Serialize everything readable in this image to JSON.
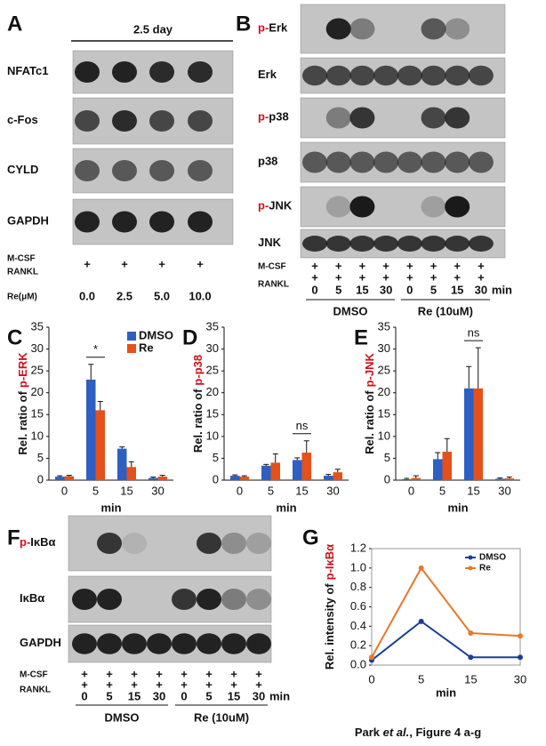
{
  "panels": {
    "A": {
      "label": "A",
      "header": "2.5 day",
      "rows": [
        {
          "name": "NFATc1"
        },
        {
          "name": "c-Fos"
        },
        {
          "name": "CYLD"
        },
        {
          "name": "GAPDH"
        }
      ],
      "mcsf": "M-CSF",
      "rankl": "RANKL",
      "marks": [
        "+",
        "+",
        "+",
        "+"
      ],
      "dose_label": "Re(μM)",
      "doses": [
        "0.0",
        "2.5",
        "5.0",
        "10.0"
      ]
    },
    "B": {
      "label": "B",
      "rows": [
        {
          "prefix": "p-",
          "name": "Erk"
        },
        {
          "name": "Erk"
        },
        {
          "prefix": "p-",
          "name": "p38"
        },
        {
          "name": "p38"
        },
        {
          "prefix": "p-",
          "name": "JNK"
        },
        {
          "name": "JNK"
        }
      ],
      "mcsf": "M-CSF",
      "rankl": "RANKL",
      "mcsf_marks": [
        "+",
        "+",
        "+",
        "+",
        "+",
        "+",
        "+",
        "+"
      ],
      "rankl_marks": [
        "+",
        "+",
        "+",
        "+",
        "+",
        "+",
        "+",
        "+"
      ],
      "times": [
        "0",
        "5",
        "15",
        "30",
        "0",
        "5",
        "15",
        "30"
      ],
      "time_unit": "min",
      "groups": [
        "DMSO",
        "Re (10uM)"
      ]
    },
    "F": {
      "label": "F",
      "rows": [
        {
          "prefix": "p-",
          "name": "IκBα"
        },
        {
          "name": "IκBα"
        },
        {
          "name": "GAPDH"
        }
      ],
      "mcsf": "M-CSF",
      "rankl": "RANKL",
      "mcsf_marks": [
        "+",
        "+",
        "+",
        "+",
        "+",
        "+",
        "+",
        "+"
      ],
      "rankl_marks": [
        "+",
        "+",
        "+",
        "+",
        "+",
        "+",
        "+",
        "+"
      ],
      "times": [
        "0",
        "5",
        "15",
        "30",
        "0",
        "5",
        "15",
        "30"
      ],
      "time_unit": "min",
      "groups": [
        "DMSO",
        "Re (10uM)"
      ]
    }
  },
  "chart_data": [
    {
      "type": "bar",
      "panel_label": "C",
      "ylabel": "Rel. ratio of",
      "ylabel_highlight": "p-ERK",
      "xlabel": "min",
      "categories": [
        "0",
        "5",
        "15",
        "30"
      ],
      "series": [
        {
          "name": "DMSO",
          "color": "#2e5fc2",
          "values": [
            0.8,
            23,
            7.2,
            0.5
          ],
          "errors": [
            0.2,
            3.5,
            0.4,
            0.2
          ]
        },
        {
          "name": "Re",
          "color": "#e5501b",
          "values": [
            0.9,
            16,
            3,
            0.8
          ],
          "errors": [
            0.2,
            2,
            1.2,
            0.3
          ]
        }
      ],
      "ylim": [
        0,
        35
      ],
      "yticks": [
        0,
        5,
        10,
        15,
        20,
        25,
        30,
        35
      ],
      "legend": "upper right",
      "annotations": [
        {
          "text": "*",
          "category": "5"
        }
      ]
    },
    {
      "type": "bar",
      "panel_label": "D",
      "ylabel": "Rel. ratio of",
      "ylabel_highlight": "p-p38",
      "xlabel": "min",
      "categories": [
        "0",
        "5",
        "15",
        "30"
      ],
      "series": [
        {
          "color": "#2e5fc2",
          "values": [
            1,
            3.3,
            4.6,
            1
          ],
          "errors": [
            0.2,
            0.3,
            0.5,
            0.3
          ]
        },
        {
          "color": "#e5501b",
          "values": [
            0.8,
            4,
            6.3,
            1.8
          ],
          "errors": [
            0.2,
            2,
            2.7,
            0.7
          ]
        }
      ],
      "ylim": [
        0,
        35
      ],
      "yticks": [
        0,
        5,
        10,
        15,
        20,
        25,
        30,
        35
      ],
      "annotations": [
        {
          "text": "ns",
          "category": "15"
        }
      ]
    },
    {
      "type": "bar",
      "panel_label": "E",
      "ylabel": "Rel. ratio of",
      "ylabel_highlight": "p-JNK",
      "xlabel": "min",
      "categories": [
        "0",
        "5",
        "15",
        "30"
      ],
      "series": [
        {
          "color": "#2e5fc2",
          "values": [
            0.2,
            4.8,
            21,
            0.3
          ],
          "errors": [
            0.2,
            1.5,
            5,
            0.2
          ]
        },
        {
          "color": "#e5501b",
          "values": [
            0.5,
            6.5,
            21,
            0.4
          ],
          "errors": [
            0.5,
            3,
            9.3,
            0.3
          ]
        }
      ],
      "ylim": [
        0,
        35
      ],
      "yticks": [
        0,
        5,
        10,
        15,
        20,
        25,
        30,
        35
      ],
      "annotations": [
        {
          "text": "ns",
          "category": "15"
        }
      ]
    },
    {
      "type": "line",
      "panel_label": "G",
      "ylabel": "Rel. intensity of",
      "ylabel_highlight": "p-IκBα",
      "xlabel": "min",
      "categories": [
        "0",
        "5",
        "15",
        "30"
      ],
      "series": [
        {
          "name": "DMSO",
          "color": "#1c3f94",
          "values": [
            0.05,
            0.45,
            0.08,
            0.08
          ]
        },
        {
          "name": "Re",
          "color": "#e8782c",
          "values": [
            0.08,
            1.0,
            0.33,
            0.3
          ]
        }
      ],
      "ylim": [
        0,
        1.2
      ],
      "yticks": [
        {
          "value": 0,
          "label": "0.0"
        },
        0.2,
        0.4,
        0.6,
        0.8,
        {
          "value": 1,
          "label": "1.0"
        },
        1.2
      ],
      "legend": "upper right"
    }
  ],
  "caption": {
    "parts": [
      "Park ",
      "et al.",
      ", Figure 4 a-g"
    ]
  }
}
